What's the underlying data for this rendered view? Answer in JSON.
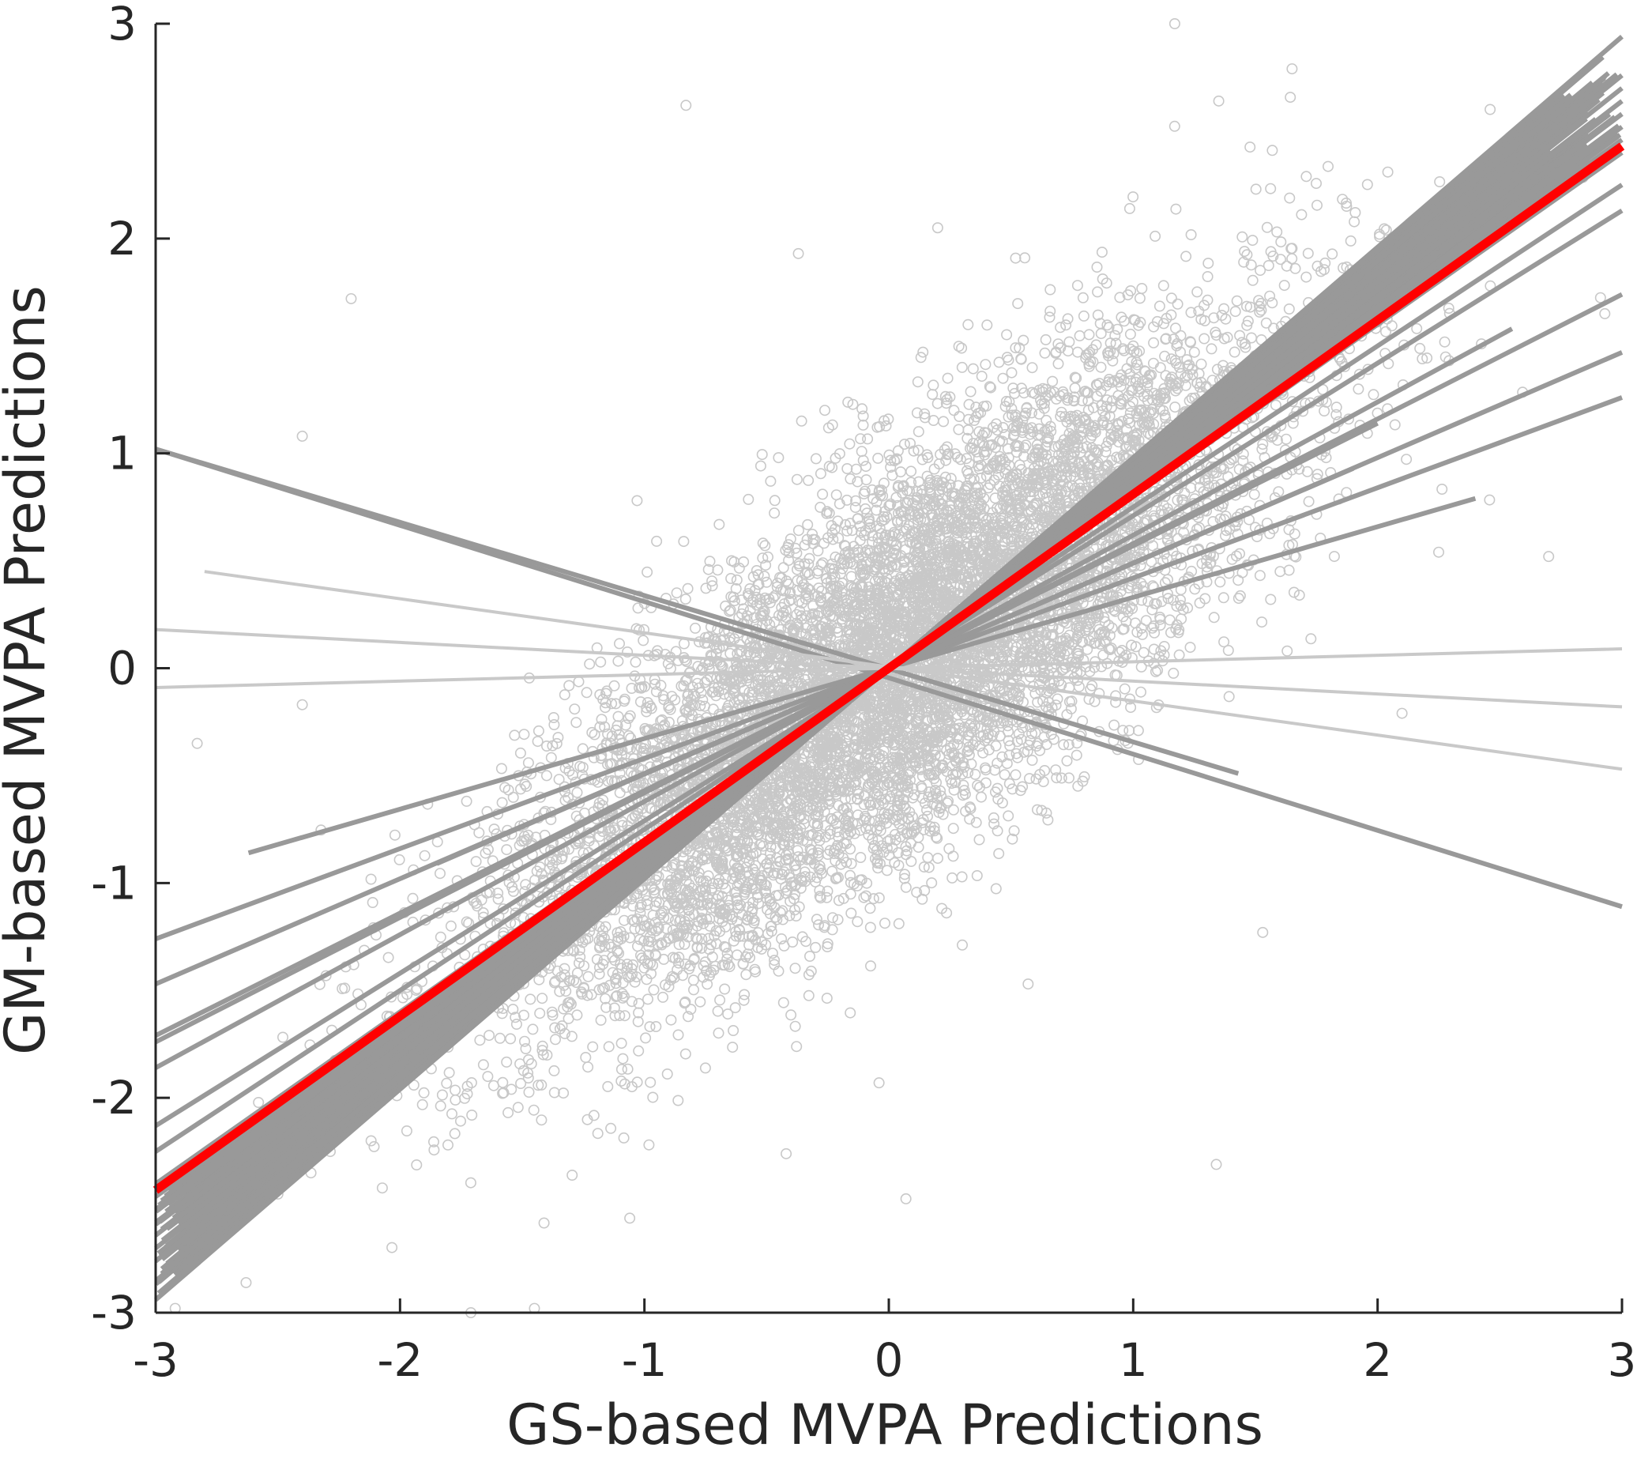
{
  "chart_data": {
    "type": "scatter",
    "title": "",
    "xlabel": "GS-based MVPA Predictions",
    "ylabel": "GM-based MVPA Predictions",
    "xlim": [
      -3,
      3
    ],
    "ylim": [
      -3,
      3
    ],
    "xticks": [
      -3,
      -2,
      -1,
      0,
      1,
      2,
      3
    ],
    "yticks": [
      -3,
      -2,
      -1,
      0,
      1,
      2,
      3
    ],
    "x_tick_labels": [
      "-3",
      "-2",
      "-1",
      "0",
      "1",
      "2",
      "3"
    ],
    "y_tick_labels": [
      "-3",
      "-2",
      "-1",
      "0",
      "1",
      "2",
      "3"
    ],
    "grid": false,
    "legend": "none",
    "colors": {
      "points": "#c8c8c8",
      "fit_lines_dark": "#999999",
      "fit_lines_light": "#c9c9c9",
      "overall_fit": "#ff0000",
      "axis": "#262626"
    },
    "scatter_points": {
      "approx_count": 9000,
      "distribution": "correlated cloud centered at (0, 0), correlation approx 0.75, extending across both axes",
      "sample_points": [
        [
          1.17,
          3.0
        ],
        [
          -0.83,
          2.62
        ],
        [
          -2.2,
          1.72
        ],
        [
          -2.4,
          1.08
        ],
        [
          0.2,
          2.05
        ],
        [
          -0.37,
          1.93
        ],
        [
          1.35,
          2.64
        ],
        [
          1.65,
          2.79
        ],
        [
          2.7,
          0.52
        ],
        [
          2.25,
          0.54
        ],
        [
          -1.03,
          0.78
        ],
        [
          -2.83,
          -0.35
        ],
        [
          -1.55,
          -1.31
        ],
        [
          0.57,
          -1.47
        ],
        [
          1.53,
          -1.23
        ],
        [
          -0.04,
          -1.93
        ],
        [
          1.34,
          -2.31
        ],
        [
          0.07,
          -2.47
        ],
        [
          -2.63,
          -2.86
        ],
        [
          -2.92,
          -2.98
        ],
        [
          -1.71,
          -3.0
        ],
        [
          -1.45,
          -2.98
        ],
        [
          -2.4,
          -0.17
        ],
        [
          2.1,
          -0.21
        ],
        [
          1.63,
          0.08
        ],
        [
          -0.42,
          -2.26
        ],
        [
          -1.06,
          -2.56
        ],
        [
          0.41,
          -0.38
        ],
        [
          -0.5,
          0.4
        ],
        [
          0.6,
          0.9
        ],
        [
          1.0,
          1.5
        ],
        [
          -1.0,
          -1.2
        ],
        [
          1.5,
          1.1
        ],
        [
          -1.4,
          -0.5
        ],
        [
          0.9,
          0.2
        ],
        [
          -0.8,
          -0.9
        ],
        [
          0.3,
          1.4
        ],
        [
          -0.3,
          -1.3
        ],
        [
          2.4,
          2.1
        ],
        [
          -2.1,
          -1.9
        ]
      ]
    },
    "series": [
      {
        "slope": 0.81,
        "x": [
          -3.0,
          3.0
        ],
        "y": [
          -2.43,
          2.43
        ],
        "style": "overall"
      },
      {
        "slope": 0.98,
        "x": [
          -3.0,
          3.0
        ],
        "y": [
          -2.94,
          2.94
        ],
        "style": "dark"
      },
      {
        "slope": 0.92,
        "x": [
          -3.0,
          3.0
        ],
        "y": [
          -2.76,
          2.76
        ],
        "style": "dark"
      },
      {
        "slope": 0.9,
        "x": [
          -3.0,
          3.0
        ],
        "y": [
          -2.7,
          2.7
        ],
        "style": "dark"
      },
      {
        "slope": 0.88,
        "x": [
          -3.0,
          3.0
        ],
        "y": [
          -2.64,
          2.64
        ],
        "style": "dark"
      },
      {
        "slope": 0.86,
        "x": [
          -3.0,
          3.0
        ],
        "y": [
          -2.58,
          2.58
        ],
        "style": "dark"
      },
      {
        "slope": 0.84,
        "x": [
          -3.0,
          3.0
        ],
        "y": [
          -2.52,
          2.52
        ],
        "style": "dark"
      },
      {
        "slope": 0.82,
        "x": [
          -3.0,
          3.0
        ],
        "y": [
          -2.46,
          2.46
        ],
        "style": "dark"
      },
      {
        "slope": 0.8,
        "x": [
          -3.0,
          3.0
        ],
        "y": [
          -2.4,
          2.4
        ],
        "style": "dark"
      },
      {
        "slope": 0.75,
        "x": [
          -3.0,
          3.0
        ],
        "y": [
          -2.25,
          2.25
        ],
        "style": "dark"
      },
      {
        "slope": 0.71,
        "x": [
          -3.0,
          3.0
        ],
        "y": [
          -2.13,
          2.13
        ],
        "style": "dark"
      },
      {
        "slope": 0.62,
        "x": [
          -3.0,
          2.55
        ],
        "y": [
          -1.86,
          1.58
        ],
        "style": "dark"
      },
      {
        "slope": 0.58,
        "x": [
          -3.0,
          3.0
        ],
        "y": [
          -1.74,
          1.74
        ],
        "style": "dark"
      },
      {
        "slope": 0.57,
        "x": [
          -3.0,
          2.0
        ],
        "y": [
          -1.71,
          1.14
        ],
        "style": "dark"
      },
      {
        "slope": 0.49,
        "x": [
          -3.0,
          3.0
        ],
        "y": [
          -1.47,
          1.47
        ],
        "style": "dark"
      },
      {
        "slope": 0.42,
        "x": [
          -3.0,
          3.0
        ],
        "y": [
          -1.26,
          1.26
        ],
        "style": "dark"
      },
      {
        "slope": 0.49,
        "x": [
          -1.85,
          1.9
        ],
        "y": [
          -0.91,
          0.93
        ],
        "style": "dark"
      },
      {
        "slope": 0.33,
        "x": [
          -2.62,
          2.4
        ],
        "y": [
          -0.86,
          0.79
        ],
        "style": "dark"
      },
      {
        "slope": -0.36,
        "x": [
          -3.0,
          3.0
        ],
        "y": [
          1.02,
          -1.11
        ],
        "style": "dark"
      },
      {
        "slope": -0.34,
        "x": [
          -3.0,
          1.43
        ],
        "y": [
          1.02,
          -0.49
        ],
        "style": "dark"
      },
      {
        "slope": -0.16,
        "x": [
          -2.8,
          3.0
        ],
        "y": [
          0.45,
          -0.47
        ],
        "style": "light"
      },
      {
        "slope": -0.06,
        "x": [
          -3.0,
          3.0
        ],
        "y": [
          0.18,
          -0.18
        ],
        "style": "light"
      },
      {
        "slope": 0.03,
        "x": [
          -3.0,
          3.0
        ],
        "y": [
          -0.09,
          0.09
        ],
        "style": "light"
      }
    ]
  }
}
